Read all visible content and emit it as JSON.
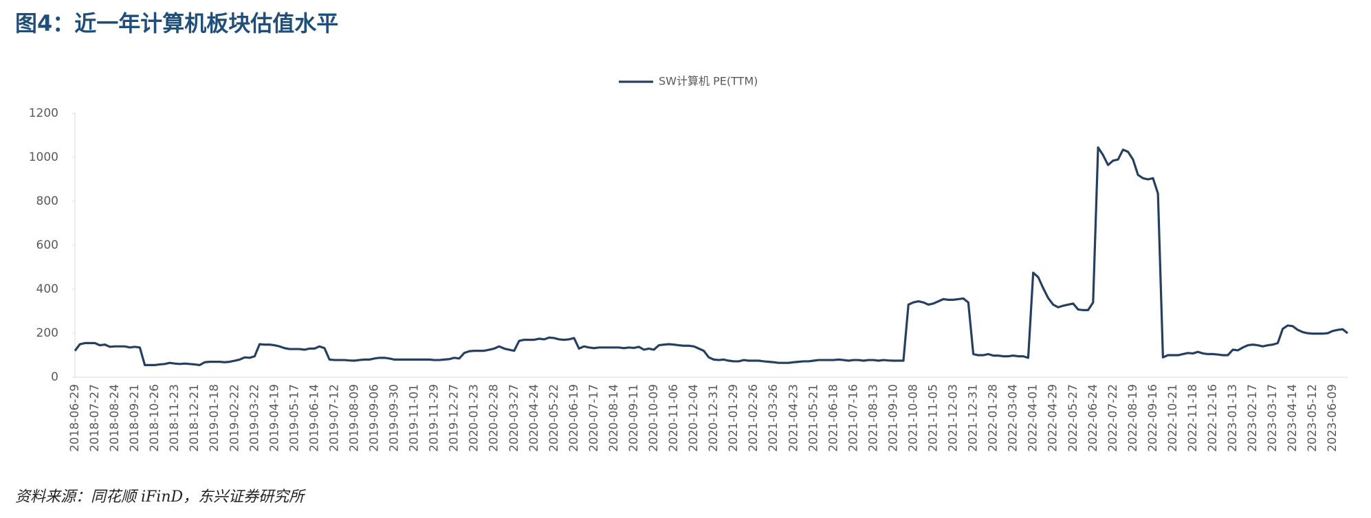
{
  "chart_data": {
    "type": "line",
    "title": "图4：近一年计算机板块估值水平",
    "source": "资料来源：同花顺 iFinD，东兴证券研究所",
    "categories": [
      "2018-06-29",
      null,
      null,
      null,
      "2018-07-27",
      null,
      null,
      null,
      "2018-08-24",
      null,
      null,
      null,
      "2018-09-21",
      null,
      null,
      null,
      "2018-10-26",
      null,
      null,
      null,
      "2018-11-23",
      null,
      null,
      null,
      "2018-12-21",
      null,
      null,
      null,
      "2019-01-18",
      null,
      null,
      null,
      "2019-02-22",
      null,
      null,
      null,
      "2019-03-22",
      null,
      null,
      null,
      "2019-04-19",
      null,
      null,
      null,
      "2019-05-17",
      null,
      null,
      null,
      "2019-06-14",
      null,
      null,
      null,
      "2019-07-12",
      null,
      null,
      null,
      "2019-08-09",
      null,
      null,
      null,
      "2019-09-06",
      null,
      null,
      null,
      "2019-09-30",
      null,
      null,
      null,
      "2019-11-01",
      null,
      null,
      null,
      "2019-11-29",
      null,
      null,
      null,
      "2019-12-27",
      null,
      null,
      null,
      "2020-01-23",
      null,
      null,
      null,
      "2020-02-28",
      null,
      null,
      null,
      "2020-03-27",
      null,
      null,
      null,
      "2020-04-24",
      null,
      null,
      null,
      "2020-05-22",
      null,
      null,
      null,
      "2020-06-19",
      null,
      null,
      null,
      "2020-07-17",
      null,
      null,
      null,
      "2020-08-14",
      null,
      null,
      null,
      "2020-09-11",
      null,
      null,
      null,
      "2020-10-09",
      null,
      null,
      null,
      "2020-11-06",
      null,
      null,
      null,
      "2020-12-04",
      null,
      null,
      null,
      "2020-12-31",
      null,
      null,
      null,
      "2021-01-29",
      null,
      null,
      null,
      "2021-02-26",
      null,
      null,
      null,
      "2021-03-26",
      null,
      null,
      null,
      "2021-04-23",
      null,
      null,
      null,
      "2021-05-21",
      null,
      null,
      null,
      "2021-06-18",
      null,
      null,
      null,
      "2021-07-16",
      null,
      null,
      null,
      "2021-08-13",
      null,
      null,
      null,
      "2021-09-10",
      null,
      null,
      null,
      "2021-10-08",
      null,
      null,
      null,
      "2021-11-05",
      null,
      null,
      null,
      "2021-12-03",
      null,
      null,
      null,
      "2021-12-31",
      null,
      null,
      null,
      "2022-01-28",
      null,
      null,
      null,
      "2022-03-04",
      null,
      null,
      null,
      "2022-04-01",
      null,
      null,
      null,
      "2022-04-29",
      null,
      null,
      null,
      "2022-05-27",
      null,
      null,
      null,
      "2022-06-24",
      null,
      null,
      null,
      "2022-07-22",
      null,
      null,
      null,
      "2022-08-19",
      null,
      null,
      null,
      "2022-09-16",
      null,
      null,
      null,
      "2022-10-21",
      null,
      null,
      null,
      "2022-11-18",
      null,
      null,
      null,
      "2022-12-16",
      null,
      null,
      null,
      "2023-01-13",
      null,
      null,
      null,
      "2023-02-17",
      null,
      null,
      null,
      "2023-03-17",
      null,
      null,
      null,
      "2023-04-14",
      null,
      null,
      null,
      "2023-05-12",
      null,
      null,
      null,
      "2023-06-09",
      null,
      null,
      null
    ],
    "series": [
      {
        "name": "SW计算机 PE(TTM)",
        "color": "#243f60",
        "values": [
          120,
          150,
          155,
          155,
          155,
          145,
          148,
          138,
          140,
          140,
          140,
          135,
          138,
          135,
          55,
          55,
          55,
          58,
          60,
          65,
          62,
          60,
          62,
          60,
          58,
          55,
          68,
          70,
          70,
          70,
          68,
          70,
          75,
          80,
          90,
          88,
          95,
          150,
          148,
          148,
          145,
          140,
          132,
          128,
          128,
          128,
          125,
          130,
          130,
          140,
          132,
          80,
          78,
          78,
          78,
          76,
          75,
          78,
          80,
          80,
          85,
          88,
          88,
          85,
          80,
          80,
          80,
          80,
          80,
          80,
          80,
          80,
          78,
          78,
          80,
          82,
          88,
          85,
          110,
          118,
          120,
          120,
          120,
          125,
          130,
          140,
          130,
          125,
          120,
          165,
          170,
          170,
          170,
          175,
          172,
          180,
          178,
          172,
          170,
          172,
          178,
          130,
          140,
          135,
          132,
          135,
          135,
          135,
          135,
          135,
          132,
          135,
          133,
          138,
          125,
          130,
          125,
          145,
          148,
          150,
          148,
          145,
          143,
          143,
          140,
          130,
          120,
          90,
          80,
          78,
          80,
          75,
          72,
          72,
          78,
          75,
          75,
          75,
          72,
          70,
          68,
          65,
          65,
          65,
          68,
          70,
          72,
          72,
          75,
          78,
          78,
          78,
          78,
          80,
          78,
          75,
          78,
          78,
          75,
          78,
          78,
          75,
          78,
          76,
          75,
          75,
          75,
          330,
          340,
          345,
          340,
          330,
          335,
          345,
          355,
          352,
          352,
          355,
          358,
          340,
          105,
          100,
          100,
          105,
          98,
          98,
          95,
          95,
          98,
          95,
          95,
          88,
          475,
          455,
          405,
          360,
          330,
          318,
          325,
          330,
          335,
          308,
          305,
          305,
          340,
          1045,
          1010,
          965,
          985,
          990,
          1035,
          1025,
          990,
          920,
          905,
          900,
          905,
          835,
          90,
          100,
          100,
          100,
          105,
          110,
          108,
          115,
          108,
          105,
          105,
          103,
          100,
          100,
          125,
          122,
          135,
          145,
          148,
          145,
          140,
          145,
          148,
          155,
          220,
          235,
          232,
          215,
          205,
          200,
          198,
          198,
          198,
          200,
          210,
          215,
          218,
          200
        ]
      }
    ],
    "ylim": [
      0,
      1200
    ],
    "yticks": [
      0,
      200,
      400,
      600,
      800,
      1000,
      1200
    ],
    "grid": false,
    "legend": "top"
  }
}
